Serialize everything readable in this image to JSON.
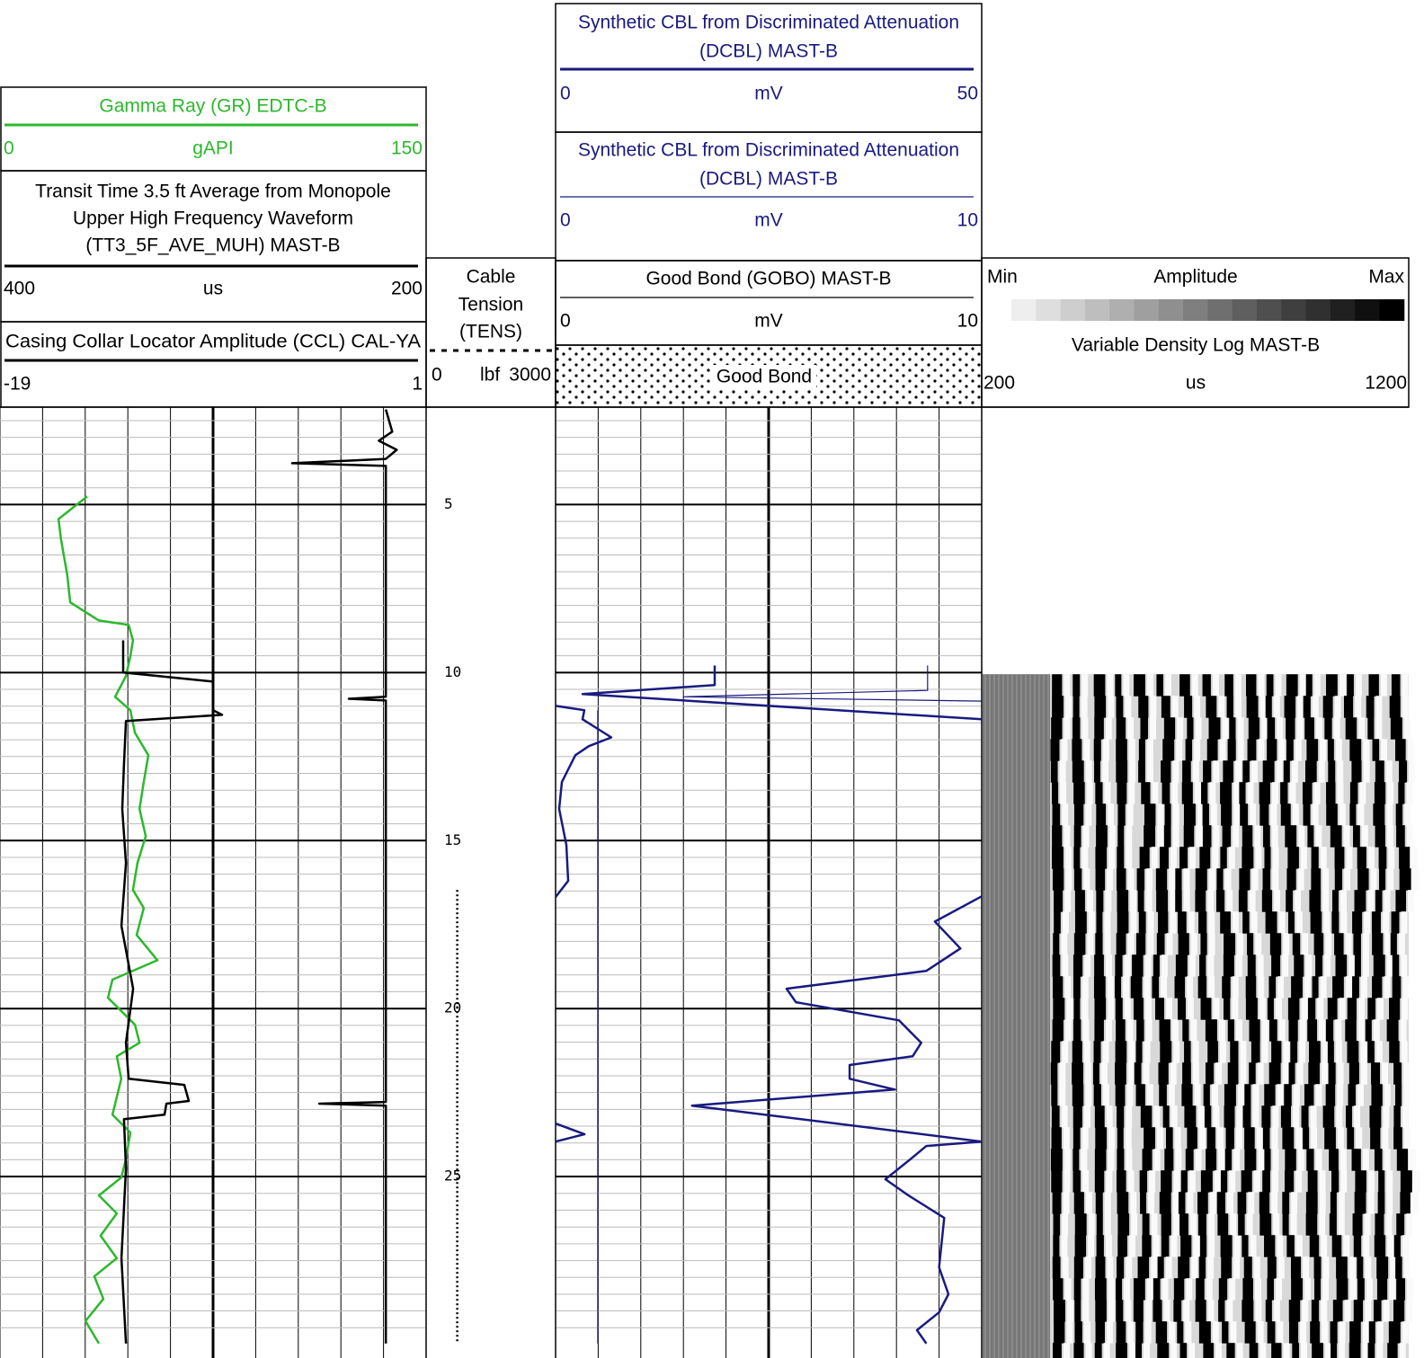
{
  "depth_axis": {
    "range": [
      2.1,
      30.4
    ],
    "ticks": [
      5,
      10,
      15,
      20,
      25
    ]
  },
  "tracks": [
    {
      "curves": [
        {
          "name": "Gamma Ray (GR) EDTC-B",
          "unit": "gAPI",
          "range": [
            0,
            150
          ],
          "color": "#2db82d",
          "depth": [
            4.76,
            5.43,
            6.04,
            7.11,
            7.91,
            8.45,
            8.58,
            9.04,
            9.52,
            10.11,
            10.72,
            11.12,
            11.79,
            12.46,
            13.26,
            14.06,
            14.87,
            15.67,
            16.47,
            17.01,
            17.81,
            18.56,
            19.14,
            19.68,
            20.48,
            21.02,
            21.42,
            22.09,
            23.16,
            23.69,
            24.49,
            25.03,
            25.56,
            26.1,
            26.76,
            27.43,
            27.97,
            28.64,
            29.3,
            29.97
          ],
          "values": [
            30.7,
            20.6,
            21.5,
            23.7,
            24.7,
            34.8,
            45.3,
            46.8,
            45.9,
            44.3,
            40.5,
            45.9,
            47.5,
            52.2,
            50.6,
            49.1,
            51.3,
            48.4,
            46.8,
            50.6,
            48.1,
            55.4,
            39.6,
            38,
            47.5,
            49.1,
            41.1,
            42.7,
            39.6,
            45.9,
            44.3,
            42.7,
            34.8,
            41.1,
            35.4,
            41.1,
            33.2,
            36.4,
            30.1,
            34.8
          ]
        },
        {
          "name": [
            "Transit Time 3.5 ft Average from Monopole",
            "Upper High Frequency Waveform",
            "(TT3_5F_AVE_MUH) MAST-B"
          ],
          "unit": "us",
          "range": [
            400,
            200
          ],
          "color": "#000000",
          "depth": [
            9.04,
            10.0,
            10.27,
            11.12,
            11.26,
            11.44,
            12.73,
            14.06,
            15.67,
            17.54,
            19.41,
            21.02,
            22.09,
            22.27,
            22.75,
            22.83,
            23.16,
            23.29,
            24.76,
            27.43,
            29.97
          ],
          "values": [
            342.2,
            342.2,
            300,
            300,
            295.8,
            340.9,
            341.8,
            342.6,
            340.9,
            343,
            337.5,
            340.9,
            339.6,
            313.5,
            311.4,
            321.9,
            322.8,
            341.8,
            340.9,
            343,
            340.9
          ]
        },
        {
          "name": "Casing Collar Locator Amplitude (CCL) CAL-YA",
          "range": [
            -19,
            1
          ],
          "color": "#000000",
          "depth": [
            2.17,
            2.83,
            3.1,
            3.37,
            3.64,
            3.77,
            3.85,
            10.72,
            10.78,
            10.83,
            22.78,
            22.83,
            22.89,
            29.97
          ],
          "values": [
            -0.89,
            -0.59,
            -1.22,
            -0.38,
            -0.89,
            -5.29,
            -0.89,
            -0.89,
            -2.63,
            -0.89,
            -0.89,
            -4.02,
            -0.89,
            -0.89
          ]
        }
      ]
    },
    {
      "curves": [
        {
          "name": [
            "Cable",
            "Tension",
            "(TENS)"
          ],
          "unit": "lbf",
          "range": [
            0,
            3000
          ],
          "color": "#000000",
          "depth": [
            16.47,
            29.97
          ],
          "values": [
            720,
            720
          ]
        }
      ]
    },
    {
      "curves": [
        {
          "name": [
            "Synthetic CBL from Discriminated Attenuation",
            "(DCBL) MAST-B"
          ],
          "unit": "mV",
          "range": [
            0,
            50
          ],
          "color": "#1a1a80",
          "depth": [
            9.79,
            10.37,
            10.64,
            11.39,
            null,
            10.99,
            11.12,
            11.39,
            11.93,
            12.19,
            12.46,
            13.26,
            14.06,
            15.13,
            16.2,
            16.68,
            null,
            16.66,
            17.41,
            18.21,
            18.88,
            19.41,
            19.81,
            20.35,
            21.02,
            21.42,
            21.68,
            22.09,
            22.41,
            22.89,
            23.96,
            null,
            23.42,
            23.74,
            23.96,
            null,
            23.96,
            24.09,
            24.49,
            25.08,
            25.56,
            26.23,
            27.7,
            28.5,
            29.04,
            29.57,
            29.97
          ],
          "values": [
            18.67,
            18.67,
            3.16,
            50,
            null,
            0,
            3.38,
            3.16,
            6.54,
            3.9,
            2.32,
            0.74,
            0.42,
            1.27,
            1.48,
            0,
            null,
            50,
            44.5,
            47.5,
            43.5,
            27.1,
            28.2,
            40.3,
            42.9,
            41.9,
            34.5,
            34.5,
            39.8,
            16,
            50,
            null,
            0,
            3.4,
            0,
            null,
            50,
            43.5,
            41.6,
            38.7,
            41.4,
            45.6,
            45,
            46.1,
            45,
            42.4,
            43.5
          ]
        },
        {
          "name": [
            "Synthetic CBL from Discriminated Attenuation",
            "(DCBL) MAST-B"
          ],
          "unit": "mV",
          "range": [
            0,
            10
          ],
          "color": "#1a1a80",
          "depth": [
            9.79,
            10.53,
            10.72,
            10.85,
            null,
            11.12,
            29.97
          ],
          "values": [
            8.73,
            8.73,
            3,
            10,
            null,
            0.99,
            0.99
          ]
        },
        {
          "name": "Good Bond (GOBO) MAST-B",
          "unit": "mV",
          "range": [
            0,
            10
          ],
          "fill_label": "Good Bond"
        }
      ]
    },
    {
      "curves": [
        {
          "name": "Variable Density Log MAST-B",
          "unit": "us",
          "range": [
            200,
            1200
          ],
          "scale": [
            "Min",
            "Amplitude",
            "Max"
          ]
        }
      ]
    }
  ]
}
